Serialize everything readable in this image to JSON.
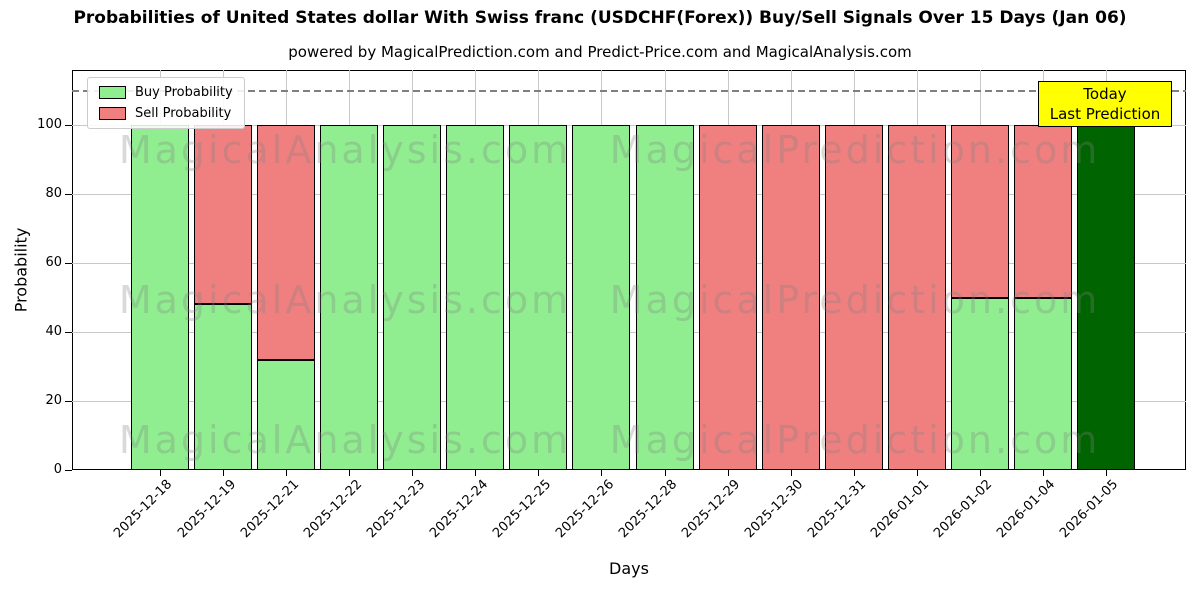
{
  "figure": {
    "title": "Probabilities of United States dollar With Swiss franc (USDCHF(Forex)) Buy/Sell Signals Over 15 Days (Jan 06)",
    "subtitle": "powered by MagicalPrediction.com and Predict-Price.com and MagicalAnalysis.com"
  },
  "legend": {
    "items": [
      {
        "label": "Buy Probability",
        "color": "#90EE90"
      },
      {
        "label": "Sell Probability",
        "color": "#F08080"
      }
    ]
  },
  "annotation": {
    "line1": "Today",
    "line2": "Last Prediction",
    "bg": "#FFFF00"
  },
  "axes": {
    "xlabel": "Days",
    "ylabel": "Probability",
    "yticks": [
      0,
      20,
      40,
      60,
      80,
      100
    ]
  },
  "watermarks": {
    "left": "MagicalAnalysis.com",
    "right": "MagicalPrediction.com"
  },
  "colors": {
    "buy": "#90EE90",
    "sell": "#F08080",
    "today_bar": "#006400",
    "annotation_bg": "#FFFF00",
    "grid": "#c8c8c8",
    "dashed_line": "#7f7f7f",
    "bar_edge": "#000000"
  },
  "chart_data": {
    "type": "bar",
    "stacked": true,
    "title": "Probabilities of United States dollar With Swiss franc (USDCHF(Forex)) Buy/Sell Signals Over 15 Days (Jan 06)",
    "xlabel": "Days",
    "ylabel": "Probability",
    "categories": [
      "2025-12-18",
      "2025-12-19",
      "2025-12-21",
      "2025-12-22",
      "2025-12-23",
      "2025-12-24",
      "2025-12-25",
      "2025-12-26",
      "2025-12-28",
      "2025-12-29",
      "2025-12-30",
      "2025-12-31",
      "2026-01-01",
      "2026-01-02",
      "2026-01-04",
      "2026-01-05"
    ],
    "series": [
      {
        "name": "Buy Probability",
        "color": "#90EE90",
        "values": [
          100,
          48,
          32,
          100,
          100,
          100,
          100,
          100,
          100,
          0,
          0,
          0,
          0,
          50,
          50,
          100
        ]
      },
      {
        "name": "Sell Probability",
        "color": "#F08080",
        "values": [
          0,
          52,
          68,
          0,
          0,
          0,
          0,
          0,
          0,
          100,
          100,
          100,
          100,
          50,
          50,
          0
        ]
      }
    ],
    "today_bar": {
      "category": "2026-01-05",
      "color": "#006400"
    },
    "dashed_line_y": 110,
    "ylim": [
      0,
      116
    ],
    "grid": true,
    "legend_position": "upper-left"
  }
}
